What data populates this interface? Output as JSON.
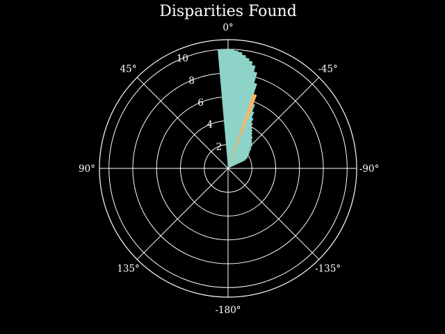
{
  "chart_data": {
    "type": "polar_histogram",
    "title": "Disparities Found",
    "theta_direction": "counterclockwise",
    "theta_zero": "top",
    "theta_tick_labels": [
      {
        "deg": 0,
        "label": "0°"
      },
      {
        "deg": 45,
        "label": "45°"
      },
      {
        "deg": 90,
        "label": "90°"
      },
      {
        "deg": 135,
        "label": "135°"
      },
      {
        "deg": 180,
        "label": "-180°"
      },
      {
        "deg": -135,
        "label": "-135°"
      },
      {
        "deg": -90,
        "label": "-90°"
      },
      {
        "deg": -45,
        "label": "-45°"
      }
    ],
    "r_ticks": [
      2,
      4,
      6,
      8,
      10
    ],
    "r_tick_labels": [
      "2",
      "4",
      "6",
      "8",
      "10"
    ],
    "r_lim": [
      0,
      10.8
    ],
    "r_label_angle_deg": 22.5,
    "grid": true,
    "series": [
      {
        "color": "#8dd3c7",
        "style": "filled_histogram",
        "bins": [
          {
            "theta": 4.0,
            "r": 10.0
          },
          {
            "theta": 2.0,
            "r": 10.0
          },
          {
            "theta": 0.0,
            "r": 10.0
          },
          {
            "theta": -2.0,
            "r": 10.0
          },
          {
            "theta": -4.0,
            "r": 9.9
          },
          {
            "theta": -6.0,
            "r": 9.8
          },
          {
            "theta": -8.0,
            "r": 9.6
          },
          {
            "theta": -10.0,
            "r": 9.4
          },
          {
            "theta": -12.0,
            "r": 9.2
          },
          {
            "theta": -14.0,
            "r": 8.9
          },
          {
            "theta": -16.0,
            "r": 8.4
          },
          {
            "theta": -18.0,
            "r": 7.5
          },
          {
            "theta": -20.0,
            "r": 6.5
          },
          {
            "theta": -22.0,
            "r": 5.8
          },
          {
            "theta": -24.0,
            "r": 5.2
          },
          {
            "theta": -26.0,
            "r": 4.7
          },
          {
            "theta": -28.0,
            "r": 4.3
          },
          {
            "theta": -30.0,
            "r": 4.0
          },
          {
            "theta": -32.0,
            "r": 3.8
          },
          {
            "theta": -34.0,
            "r": 3.6
          },
          {
            "theta": -36.0,
            "r": 3.4
          },
          {
            "theta": -38.0,
            "r": 3.3
          },
          {
            "theta": -40.0,
            "r": 3.1
          },
          {
            "theta": -42.0,
            "r": 3.0
          },
          {
            "theta": -44.0,
            "r": 2.9
          },
          {
            "theta": -46.0,
            "r": 2.8
          },
          {
            "theta": -48.0,
            "r": 2.6
          },
          {
            "theta": -50.0,
            "r": 2.5
          },
          {
            "theta": -52.0,
            "r": 2.3
          },
          {
            "theta": -54.0,
            "r": 2.2
          },
          {
            "theta": -56.0,
            "r": 2.1
          },
          {
            "theta": -58.0,
            "r": 2.0
          },
          {
            "theta": -60.0,
            "r": 1.9
          },
          {
            "theta": -62.0,
            "r": 1.8
          },
          {
            "theta": -64.0,
            "r": 1.6
          }
        ]
      },
      {
        "color": "#fdb462",
        "style": "wedge",
        "theta_center": -20.0,
        "theta_halfwidth": 1.5,
        "r": 6.6
      }
    ]
  }
}
